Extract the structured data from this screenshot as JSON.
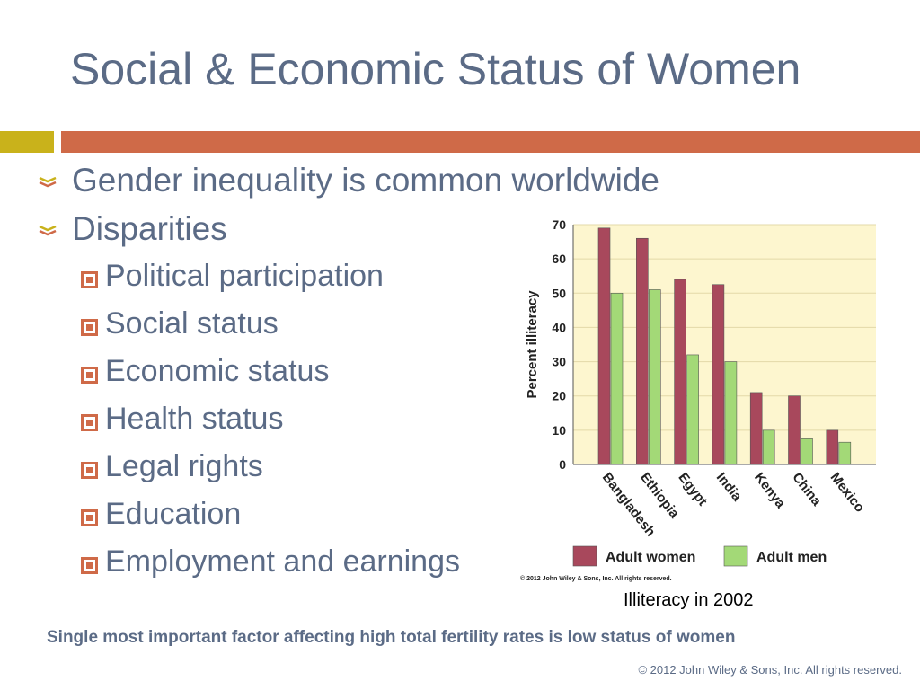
{
  "slide": {
    "title": "Social & Economic Status of Women",
    "bullets": [
      "Gender inequality is common worldwide",
      "Disparities"
    ],
    "subbullets": [
      "Political participation",
      "Social status",
      "Economic status",
      "Health status",
      "Legal rights",
      "Education",
      "Employment and earnings"
    ],
    "caption": "Illiteracy in 2002",
    "key_statement": "Single most important factor affecting high total fertility rates is low status of women",
    "footer": "© 2012 John Wiley & Sons, Inc. All rights reserved.",
    "colors": {
      "title": "#5b6b86",
      "accent_bar": "#cf6a48",
      "accent_block": "#c9b21b"
    }
  },
  "chart_data": {
    "type": "bar",
    "categories": [
      "Bangladesh",
      "Ethiopia",
      "Egypt",
      "India",
      "Kenya",
      "China",
      "Mexico"
    ],
    "series": [
      {
        "name": "Adult women",
        "values": [
          69,
          66,
          54,
          52.5,
          21,
          20,
          10
        ],
        "color": "#a8485c"
      },
      {
        "name": "Adult men",
        "values": [
          50,
          51,
          32,
          30,
          10,
          7.5,
          6.5
        ],
        "color": "#a3d977"
      }
    ],
    "ylabel": "Percent illiteracy",
    "ylim": [
      0,
      70
    ],
    "yticks": [
      "0",
      "10",
      "20",
      "30",
      "40",
      "50",
      "60",
      "70"
    ],
    "grid": true,
    "background": "#fdf6cf",
    "legend_position": "bottom",
    "credit": "© 2012 John Wiley & Sons, Inc. All rights reserved."
  }
}
